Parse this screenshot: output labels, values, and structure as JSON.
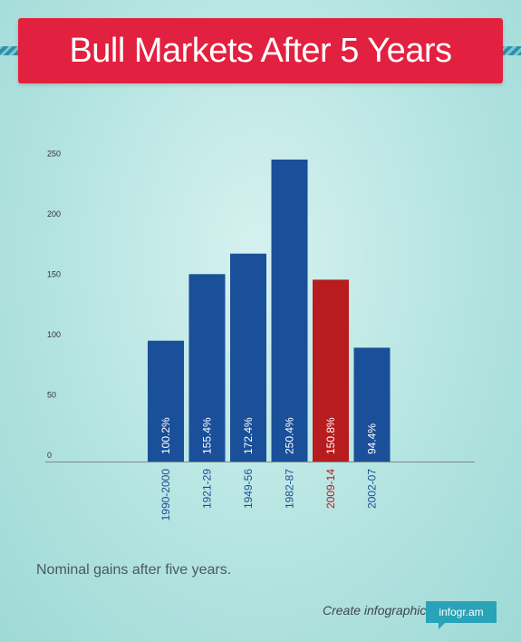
{
  "title": "Bull Markets After 5 Years",
  "caption": "Nominal gains after five years.",
  "footer": {
    "text": "Create infographics",
    "badge": "infogr.am"
  },
  "colors": {
    "banner": "#e2203f",
    "bar": "#1a4f99",
    "highlight": "#b91c1f",
    "axis": "#7a8a8c"
  },
  "chart_data": {
    "type": "bar",
    "categories": [
      "1990-2000",
      "1921-29",
      "1949-56",
      "1982-87",
      "2009-14",
      "2002-07"
    ],
    "values": [
      100.2,
      155.4,
      172.4,
      250.4,
      150.8,
      94.4
    ],
    "data_labels": [
      "100.2%",
      "155.4%",
      "172.4%",
      "250.4%",
      "150.8%",
      "94.4%"
    ],
    "highlight_index": 4,
    "yticks": [
      0,
      50,
      100,
      150,
      200,
      250
    ],
    "ylim": [
      0,
      260
    ],
    "title": "",
    "xlabel": "",
    "ylabel": "",
    "grid": false,
    "legend": "none"
  }
}
